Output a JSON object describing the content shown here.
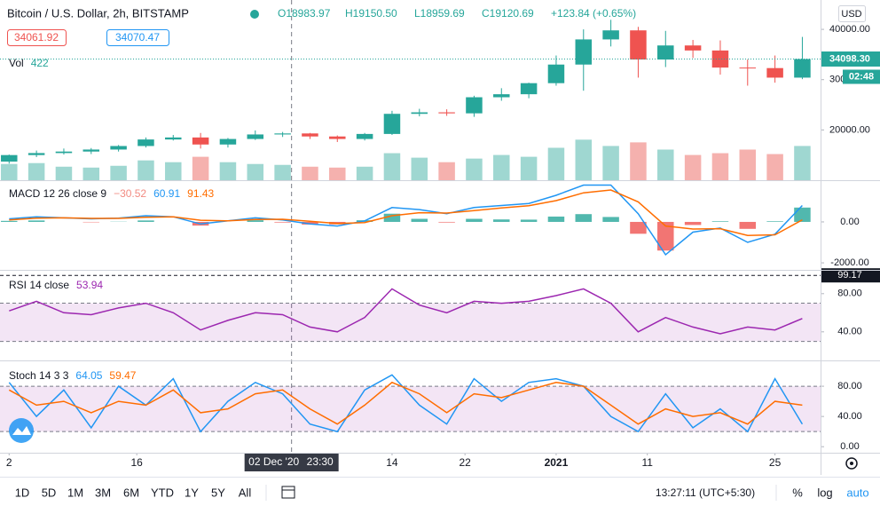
{
  "header": {
    "title": "Bitcoin / U.S. Dollar, 2h, BITSTAMP",
    "ohlc": [
      "O18983.97",
      "H19150.50",
      "L18959.69",
      "C19120.69",
      "+123.84 (+0.65%)"
    ],
    "bid": 34061.92,
    "ask": 34070.47
  },
  "toolbar": {
    "ranges": [
      "1D",
      "5D",
      "1M",
      "3M",
      "6M",
      "YTD",
      "1Y",
      "5Y",
      "All"
    ],
    "clock": "13:27:11 (UTC+5:30)",
    "percent": "%",
    "log": "log",
    "auto": "auto"
  },
  "chart_data": [
    {
      "type": "candlestick",
      "x": [
        "2020-11-02",
        "2020-11-05",
        "2020-11-08",
        "2020-11-11",
        "2020-11-14",
        "2020-11-17",
        "2020-11-20",
        "2020-11-23",
        "2020-11-26",
        "2020-11-29",
        "2020-12-02",
        "2020-12-05",
        "2020-12-08",
        "2020-12-11",
        "2020-12-14",
        "2020-12-17",
        "2020-12-20",
        "2020-12-23",
        "2020-12-26",
        "2020-12-29",
        "2021-01-01",
        "2021-01-04",
        "2021-01-07",
        "2021-01-10",
        "2021-01-13",
        "2021-01-16",
        "2021-01-19",
        "2021-01-22",
        "2021-01-25",
        "2021-01-28"
      ],
      "open": [
        13700,
        15000,
        15400,
        15700,
        16100,
        16800,
        18100,
        18500,
        17100,
        18200,
        19100,
        19300,
        18700,
        18200,
        19200,
        23200,
        23500,
        23300,
        26500,
        27100,
        29300,
        33000,
        38000,
        39800,
        34000,
        36800,
        35800,
        32400,
        32300,
        30400
      ],
      "high": [
        15100,
        15900,
        16300,
        16400,
        17000,
        18500,
        19000,
        19400,
        18400,
        19900,
        19600,
        19400,
        18900,
        19400,
        23800,
        24200,
        24100,
        26800,
        28300,
        29400,
        34800,
        40000,
        41900,
        40500,
        39700,
        37900,
        37800,
        34000,
        34800,
        38500
      ],
      "low": [
        13300,
        14600,
        15100,
        15200,
        15700,
        16500,
        17900,
        16300,
        16500,
        18000,
        18600,
        18200,
        17600,
        17900,
        19000,
        22700,
        22800,
        22600,
        25800,
        26300,
        28800,
        27800,
        36600,
        30400,
        32500,
        34300,
        31000,
        28800,
        29400,
        30100
      ],
      "close": [
        15000,
        15400,
        15700,
        16100,
        16800,
        18100,
        18500,
        17100,
        18200,
        19100,
        19300,
        18700,
        18200,
        19200,
        23200,
        23500,
        23300,
        26500,
        27100,
        29300,
        33000,
        38000,
        39800,
        34000,
        36800,
        35800,
        32400,
        32300,
        30400,
        34098.3
      ],
      "up_color": "#26a69a",
      "down_color": "#ef5350",
      "xlim": [
        "2020-11-01",
        "2021-01-30"
      ],
      "xticks": [
        {
          "value": "2020-11-02",
          "label": "2"
        },
        {
          "value": "2020-11-16",
          "label": "16"
        },
        {
          "value": "2020-12-14",
          "label": "14"
        },
        {
          "value": "2020-12-22",
          "label": "22"
        },
        {
          "value": "2021-01-01",
          "label": "2021"
        },
        {
          "value": "2021-01-11",
          "label": "11"
        },
        {
          "value": "2021-01-25",
          "label": "25"
        }
      ],
      "ylim": [
        10000,
        45840
      ],
      "yticks": [
        {
          "value": 40000,
          "label": "40000.00"
        },
        {
          "value": 30000,
          "label": "30000.00"
        },
        {
          "value": 20000,
          "label": "20000.00"
        }
      ],
      "axis_unit": "USD",
      "last_price": {
        "value": 34098.3,
        "label": "34098.30"
      },
      "countdown": "02:48",
      "crosshair": {
        "x": "2020-12-02T23:30",
        "date_label": "02 Dec '20",
        "time_label": "23:30"
      }
    },
    {
      "type": "bar",
      "name": "Vol",
      "legend_values": [
        422
      ],
      "legend_colors": [
        "#26a69a"
      ],
      "x": [
        "2020-11-02",
        "2020-11-05",
        "2020-11-08",
        "2020-11-11",
        "2020-11-14",
        "2020-11-17",
        "2020-11-20",
        "2020-11-23",
        "2020-11-26",
        "2020-11-29",
        "2020-12-02",
        "2020-12-05",
        "2020-12-08",
        "2020-12-11",
        "2020-12-14",
        "2020-12-17",
        "2020-12-20",
        "2020-12-23",
        "2020-12-26",
        "2020-12-29",
        "2021-01-01",
        "2021-01-04",
        "2021-01-07",
        "2021-01-10",
        "2021-01-13",
        "2021-01-16",
        "2021-01-19",
        "2021-01-22",
        "2021-01-25",
        "2021-01-28"
      ],
      "values": [
        1800,
        1900,
        1500,
        1400,
        1600,
        2200,
        2000,
        2600,
        2000,
        1800,
        1700,
        1500,
        1400,
        1500,
        3000,
        2500,
        2000,
        2400,
        2800,
        2600,
        3600,
        4500,
        3800,
        4200,
        3400,
        2800,
        3000,
        3400,
        2900,
        3800
      ],
      "up_color": "#9fd7d1",
      "down_color": "#f5b1ae",
      "ylim": [
        0,
        20000
      ]
    },
    {
      "type": "line",
      "name": "MACD 12 26 close 9",
      "legend_values": [
        {
          "value": -30.52,
          "label": "−30.52"
        },
        60.91,
        91.43
      ],
      "legend_colors": [
        "#f28b82",
        "#2196f3",
        "#ff6d00"
      ],
      "x": [
        "2020-11-02",
        "2020-11-05",
        "2020-11-08",
        "2020-11-11",
        "2020-11-14",
        "2020-11-17",
        "2020-11-20",
        "2020-11-23",
        "2020-11-26",
        "2020-11-29",
        "2020-12-02",
        "2020-12-05",
        "2020-12-08",
        "2020-12-11",
        "2020-12-14",
        "2020-12-17",
        "2020-12-20",
        "2020-12-23",
        "2020-12-26",
        "2020-12-29",
        "2021-01-01",
        "2021-01-04",
        "2021-01-07",
        "2021-01-10",
        "2021-01-13",
        "2021-01-16",
        "2021-01-19",
        "2021-01-22",
        "2021-01-25",
        "2021-01-28"
      ],
      "ylim": [
        -2300,
        1950
      ],
      "yticks": [
        {
          "value": 0,
          "label": "0.00"
        },
        {
          "value": -2000,
          "label": "-2000.00"
        }
      ],
      "series": [
        {
          "type": "bar",
          "up_color": "#26a69a",
          "down_color": "#ef5350",
          "values": [
            50,
            70,
            0,
            -20,
            10,
            70,
            0,
            -180,
            0,
            80,
            -30,
            -130,
            -120,
            80,
            400,
            150,
            -30,
            150,
            120,
            110,
            260,
            380,
            240,
            -580,
            -1400,
            -150,
            30,
            -340,
            30,
            700
          ]
        },
        {
          "color": "#2196f3",
          "values": [
            150,
            250,
            200,
            150,
            180,
            300,
            250,
            -100,
            50,
            200,
            100,
            -100,
            -200,
            50,
            700,
            600,
            400,
            700,
            800,
            900,
            1300,
            1800,
            1800,
            400,
            -1600,
            -500,
            -300,
            -1000,
            -600,
            800
          ]
        },
        {
          "color": "#ff6d00",
          "values": [
            100,
            180,
            200,
            170,
            170,
            230,
            250,
            80,
            50,
            120,
            130,
            30,
            -80,
            -30,
            300,
            450,
            430,
            550,
            680,
            790,
            1040,
            1420,
            1560,
            980,
            -200,
            -350,
            -330,
            -660,
            -630,
            100
          ]
        }
      ]
    },
    {
      "type": "line",
      "name": "RSI 14 close",
      "legend_values": [
        53.94
      ],
      "legend_colors": [
        "#9c27b0"
      ],
      "x": [
        "2020-11-02",
        "2020-11-05",
        "2020-11-08",
        "2020-11-11",
        "2020-11-14",
        "2020-11-17",
        "2020-11-20",
        "2020-11-23",
        "2020-11-26",
        "2020-11-29",
        "2020-12-02",
        "2020-12-05",
        "2020-12-08",
        "2020-12-11",
        "2020-12-14",
        "2020-12-17",
        "2020-12-20",
        "2020-12-23",
        "2020-12-26",
        "2020-12-29",
        "2021-01-01",
        "2021-01-04",
        "2021-01-07",
        "2021-01-10",
        "2021-01-13",
        "2021-01-16",
        "2021-01-19",
        "2021-01-22",
        "2021-01-25",
        "2021-01-28"
      ],
      "ylim": [
        11,
        104
      ],
      "yticks": [
        {
          "value": 80,
          "label": "80.00"
        },
        {
          "value": 40,
          "label": "40.00"
        }
      ],
      "band": [
        30,
        70
      ],
      "band_color": "#9c27b0",
      "max_label": 99.17,
      "series": [
        {
          "color": "#9c27b0",
          "values": [
            62,
            72,
            60,
            58,
            65,
            70,
            60,
            42,
            52,
            60,
            58,
            45,
            40,
            55,
            85,
            68,
            60,
            72,
            70,
            72,
            78,
            85,
            70,
            40,
            55,
            45,
            38,
            45,
            42,
            54
          ]
        }
      ]
    },
    {
      "type": "line",
      "name": "Stoch 14 3 3",
      "legend_values": [
        64.05,
        59.47
      ],
      "legend_colors": [
        "#2196f3",
        "#ff6d00"
      ],
      "x": [
        "2020-11-02",
        "2020-11-05",
        "2020-11-08",
        "2020-11-11",
        "2020-11-14",
        "2020-11-17",
        "2020-11-20",
        "2020-11-23",
        "2020-11-26",
        "2020-11-29",
        "2020-12-02",
        "2020-12-05",
        "2020-12-08",
        "2020-12-11",
        "2020-12-14",
        "2020-12-17",
        "2020-12-20",
        "2020-12-23",
        "2020-12-26",
        "2020-12-29",
        "2021-01-01",
        "2021-01-04",
        "2021-01-07",
        "2021-01-10",
        "2021-01-13",
        "2021-01-16",
        "2021-01-19",
        "2021-01-22",
        "2021-01-25",
        "2021-01-28"
      ],
      "ylim": [
        -8,
        113
      ],
      "yticks": [
        {
          "value": 80,
          "label": "80.00"
        },
        {
          "value": 40,
          "label": "40.00"
        },
        {
          "value": 0,
          "label": "0.00"
        }
      ],
      "band": [
        20,
        80
      ],
      "band_color": "#9c27b0",
      "series": [
        {
          "color": "#2196f3",
          "values": [
            85,
            40,
            75,
            25,
            80,
            55,
            90,
            20,
            60,
            85,
            70,
            30,
            20,
            75,
            95,
            55,
            30,
            90,
            60,
            85,
            90,
            80,
            40,
            20,
            70,
            25,
            50,
            20,
            90,
            30
          ]
        },
        {
          "color": "#ff6d00",
          "values": [
            75,
            55,
            60,
            45,
            60,
            55,
            75,
            45,
            50,
            70,
            75,
            50,
            30,
            55,
            85,
            70,
            45,
            70,
            65,
            75,
            85,
            80,
            55,
            30,
            50,
            40,
            45,
            30,
            60,
            55
          ]
        }
      ]
    }
  ]
}
